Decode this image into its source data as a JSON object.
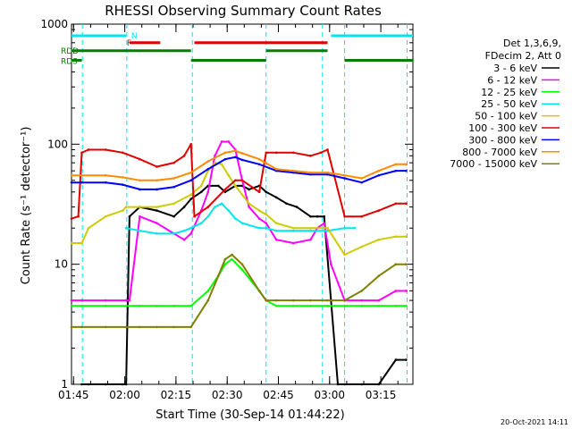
{
  "chart_data": {
    "type": "line",
    "title": "RHESSI Observing Summary Count Rates",
    "xlabel": "Start Time (30-Sep-14 01:44:22)",
    "ylabel": "Count Rate (s⁻¹ detector⁻¹)",
    "y_scale": "log",
    "ylim": [
      1,
      1000
    ],
    "xlim_minutes": [
      0,
      100
    ],
    "x_ticks": [
      {
        "t": 0.6,
        "label": "01:45"
      },
      {
        "t": 15.6,
        "label": "02:00"
      },
      {
        "t": 30.6,
        "label": "02:15"
      },
      {
        "t": 45.6,
        "label": "02:30"
      },
      {
        "t": 60.6,
        "label": "02:45"
      },
      {
        "t": 75.6,
        "label": "03:00"
      },
      {
        "t": 90.6,
        "label": "03:15"
      }
    ],
    "y_ticks": [
      {
        "v": 1,
        "label": "1"
      },
      {
        "v": 10,
        "label": "10"
      },
      {
        "v": 100,
        "label": "100"
      },
      {
        "v": 1000,
        "label": "1000"
      }
    ],
    "info_lines": [
      "Det 1,3,6,9,",
      "FDecim 2, Att 0"
    ],
    "footer_timestamp": "20-Oct-2021 14:11",
    "flag_bars": [
      {
        "label": "N",
        "color": "#00e5ee",
        "level": 800,
        "segments": [
          [
            0,
            16
          ],
          [
            76,
            100
          ]
        ]
      },
      {
        "label": "F",
        "color": "#e00000",
        "level": 700,
        "segments": [
          [
            17,
            26
          ],
          [
            36,
            75
          ]
        ]
      },
      {
        "label": "RDD",
        "color": "#008000",
        "level": 600,
        "segments": [
          [
            0,
            35
          ],
          [
            57,
            75
          ]
        ]
      },
      {
        "label": "RDS",
        "color": "#008000",
        "level": 500,
        "segments": [
          [
            0,
            3
          ],
          [
            35,
            57
          ],
          [
            80,
            100
          ]
        ]
      }
    ],
    "vlines_minutes": [
      3.2,
      16.2,
      35.4,
      57.0,
      73.5,
      80.0,
      98.3
    ],
    "series": [
      {
        "name": "3 - 6 keV",
        "color": "#000000",
        "x": [
          3,
          5,
          10,
          15,
          16,
          17,
          20,
          25,
          30,
          33,
          35,
          38,
          40,
          43,
          45,
          48,
          50,
          52,
          55,
          57,
          60,
          63,
          66,
          70,
          72,
          74,
          78,
          80,
          85,
          90,
          95,
          98
        ],
        "y": [
          1,
          1,
          1,
          1,
          1,
          25,
          30,
          28,
          25,
          30,
          35,
          40,
          45,
          45,
          40,
          45,
          45,
          42,
          45,
          40,
          36,
          32,
          30,
          25,
          25,
          25,
          1,
          1,
          1,
          1,
          1.6,
          1.6
        ]
      },
      {
        "name": "6 - 12 keV",
        "color": "#ff00ff",
        "x": [
          0,
          3,
          10,
          16,
          17,
          20,
          25,
          30,
          33,
          35,
          38,
          40,
          42,
          44,
          46,
          48,
          50,
          52,
          55,
          57,
          60,
          65,
          70,
          72,
          74,
          76,
          80,
          85,
          90,
          95,
          98
        ],
        "y": [
          5,
          5,
          5,
          5,
          5,
          25,
          22,
          18,
          16,
          18,
          28,
          40,
          80,
          105,
          105,
          90,
          50,
          30,
          24,
          22,
          16,
          15,
          16,
          20,
          22,
          10,
          5,
          5,
          5,
          6,
          6
        ]
      },
      {
        "name": "12 - 25 keV",
        "color": "#00ff00",
        "x": [
          0,
          3,
          10,
          16,
          20,
          25,
          30,
          35,
          40,
          43,
          45,
          47,
          50,
          55,
          57,
          60,
          65,
          70,
          75,
          80,
          85,
          90,
          95,
          98
        ],
        "y": [
          4.5,
          4.5,
          4.5,
          4.5,
          4.5,
          4.5,
          4.5,
          4.5,
          6,
          8,
          10,
          11,
          9,
          6,
          5,
          4.5,
          4.5,
          4.5,
          4.5,
          4.5,
          4.5,
          4.5,
          4.5,
          4.5
        ]
      },
      {
        "name": "25 - 50 keV",
        "color": "#00e5ee",
        "x": [
          16,
          20,
          25,
          30,
          33,
          35,
          38,
          40,
          42,
          44,
          46,
          48,
          50,
          55,
          57,
          60,
          65,
          70,
          75,
          80,
          83
        ],
        "y": [
          20,
          19,
          18,
          18,
          19,
          20,
          22,
          25,
          30,
          32,
          28,
          24,
          22,
          20,
          20,
          19,
          19,
          19,
          19,
          20,
          20
        ]
      },
      {
        "name": "50 - 100 keV",
        "color": "#cccc00",
        "x": [
          0,
          3,
          5,
          10,
          15,
          16,
          20,
          25,
          30,
          35,
          38,
          40,
          42,
          44,
          46,
          48,
          50,
          52,
          55,
          57,
          60,
          65,
          70,
          75,
          80,
          85,
          90,
          95,
          98
        ],
        "y": [
          15,
          15,
          20,
          25,
          28,
          30,
          30,
          30,
          32,
          38,
          45,
          60,
          70,
          68,
          55,
          45,
          38,
          32,
          28,
          26,
          22,
          20,
          20,
          20,
          12,
          14,
          16,
          17,
          17
        ]
      },
      {
        "name": "100 - 300 keV",
        "color": "#e00000",
        "x": [
          0,
          2,
          3,
          5,
          10,
          15,
          20,
          25,
          30,
          33,
          35,
          36,
          40,
          45,
          48,
          50,
          55,
          57,
          60,
          65,
          70,
          73,
          75,
          80,
          85,
          90,
          95,
          98
        ],
        "y": [
          24,
          25,
          85,
          90,
          90,
          85,
          75,
          65,
          70,
          80,
          100,
          25,
          30,
          42,
          50,
          50,
          40,
          85,
          85,
          85,
          80,
          85,
          90,
          25,
          25,
          28,
          32,
          32
        ]
      },
      {
        "name": "300 - 800 keV",
        "color": "#0000ff",
        "x": [
          0,
          3,
          10,
          15,
          20,
          25,
          30,
          35,
          40,
          45,
          48,
          50,
          55,
          60,
          65,
          70,
          75,
          80,
          85,
          90,
          95,
          98
        ],
        "y": [
          48,
          48,
          48,
          46,
          42,
          42,
          44,
          50,
          62,
          75,
          78,
          74,
          68,
          60,
          58,
          56,
          56,
          52,
          48,
          55,
          60,
          60
        ]
      },
      {
        "name": "800 - 7000 keV",
        "color": "#ff8c00",
        "x": [
          0,
          3,
          10,
          15,
          20,
          25,
          30,
          35,
          40,
          45,
          48,
          50,
          55,
          60,
          65,
          70,
          75,
          80,
          85,
          90,
          95,
          98
        ],
        "y": [
          55,
          55,
          55,
          53,
          50,
          50,
          52,
          58,
          72,
          85,
          88,
          84,
          75,
          62,
          60,
          58,
          58,
          55,
          52,
          60,
          68,
          68
        ]
      },
      {
        "name": "7000 - 15000 keV",
        "color": "#808000",
        "x": [
          0,
          3,
          10,
          16,
          20,
          25,
          30,
          35,
          40,
          43,
          45,
          47,
          50,
          55,
          57,
          60,
          65,
          70,
          75,
          80,
          85,
          90,
          95,
          98
        ],
        "y": [
          3,
          3,
          3,
          3,
          3,
          3,
          3,
          3,
          5,
          8,
          11,
          12,
          10,
          6,
          5,
          5,
          5,
          5,
          5,
          5,
          6,
          8,
          10,
          10
        ]
      }
    ]
  }
}
